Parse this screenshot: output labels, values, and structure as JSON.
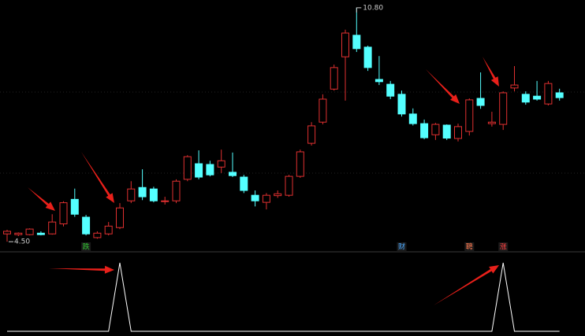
{
  "chart_data": {
    "type": "candlestick",
    "open": [
      4.71,
      4.69,
      4.69,
      4.73,
      4.71,
      4.98,
      5.64,
      5.16,
      4.61,
      4.71,
      4.88,
      5.6,
      5.96,
      5.92,
      5.58,
      5.6,
      6.18,
      6.6,
      6.58,
      6.51,
      6.37,
      6.24,
      5.75,
      5.56,
      5.74,
      5.75,
      6.26,
      7.15,
      7.72,
      8.61,
      9.48,
      10.06,
      9.74,
      8.87,
      8.74,
      8.47,
      7.94,
      7.68,
      7.38,
      7.64,
      7.28,
      7.47,
      8.36,
      7.68,
      7.66,
      8.64,
      8.47,
      8.42,
      8.21,
      8.51
    ],
    "high": [
      4.82,
      4.75,
      4.86,
      4.78,
      5.24,
      5.59,
      5.93,
      5.22,
      4.78,
      5.03,
      5.54,
      6.13,
      6.45,
      5.98,
      5.71,
      6.18,
      6.83,
      6.96,
      6.68,
      6.98,
      6.9,
      6.3,
      5.88,
      5.81,
      5.88,
      6.3,
      6.98,
      7.72,
      8.47,
      9.27,
      10.21,
      10.8,
      9.78,
      9.5,
      8.83,
      8.57,
      8.09,
      7.79,
      7.7,
      7.66,
      7.68,
      8.36,
      9.06,
      8.0,
      8.55,
      9.23,
      8.55,
      8.83,
      8.83,
      8.62
    ],
    "low": [
      4.5,
      4.65,
      4.67,
      4.67,
      4.69,
      4.91,
      5.17,
      4.67,
      4.58,
      4.67,
      4.84,
      5.54,
      5.62,
      5.56,
      5.5,
      5.54,
      6.13,
      6.18,
      6.26,
      6.35,
      6.24,
      5.81,
      5.45,
      5.37,
      5.68,
      5.71,
      6.22,
      7.09,
      7.66,
      8.57,
      8.3,
      9.61,
      9.1,
      8.72,
      8.34,
      7.87,
      7.63,
      7.26,
      7.24,
      7.24,
      7.2,
      7.36,
      8.08,
      7.6,
      7.51,
      8.55,
      8.19,
      8.3,
      8.17,
      8.3
    ],
    "close": [
      4.78,
      4.73,
      4.84,
      4.69,
      5.03,
      5.55,
      5.24,
      4.71,
      4.73,
      4.92,
      5.41,
      5.92,
      5.71,
      5.6,
      5.6,
      6.13,
      6.79,
      6.24,
      6.3,
      6.68,
      6.28,
      5.88,
      5.6,
      5.75,
      5.79,
      6.26,
      6.92,
      7.62,
      8.34,
      9.19,
      10.12,
      9.7,
      9.19,
      8.81,
      8.42,
      7.94,
      7.68,
      7.3,
      7.66,
      7.29,
      7.6,
      8.32,
      8.17,
      7.72,
      8.51,
      8.72,
      8.26,
      8.34,
      8.76,
      8.38
    ],
    "ylim": [
      4.27,
      11.01
    ],
    "up_color": "#e03030",
    "down_color": "#54ffff",
    "high_label": "10.80",
    "low_label": "4.50",
    "markers": [
      null,
      null,
      null,
      null,
      null,
      null,
      null,
      {
        "label": "跌",
        "color": "#30c030"
      },
      null,
      null,
      null,
      null,
      null,
      null,
      null,
      null,
      null,
      null,
      null,
      null,
      null,
      null,
      null,
      null,
      null,
      null,
      null,
      null,
      null,
      null,
      null,
      null,
      null,
      null,
      null,
      {
        "label": "财",
        "color": "#4aa8ff"
      },
      null,
      null,
      null,
      null,
      null,
      {
        "label": "聘",
        "color": "#ff7a50"
      },
      null,
      null,
      {
        "label": "涨",
        "color": "#ff4040"
      },
      null,
      null,
      null,
      null,
      null
    ],
    "indicator": {
      "values": [
        0,
        0,
        0,
        0,
        0,
        0,
        0,
        0,
        0,
        0,
        1,
        0,
        0,
        0,
        0,
        0,
        0,
        0,
        0,
        0,
        0,
        0,
        0,
        0,
        0,
        0,
        0,
        0,
        0,
        0,
        0,
        0,
        0,
        0,
        0,
        0,
        0,
        0,
        0,
        0,
        0,
        0,
        0,
        0,
        1,
        0,
        0,
        0,
        0,
        0
      ],
      "ylim": [
        0,
        1
      ],
      "color": "#ffffff"
    }
  }
}
